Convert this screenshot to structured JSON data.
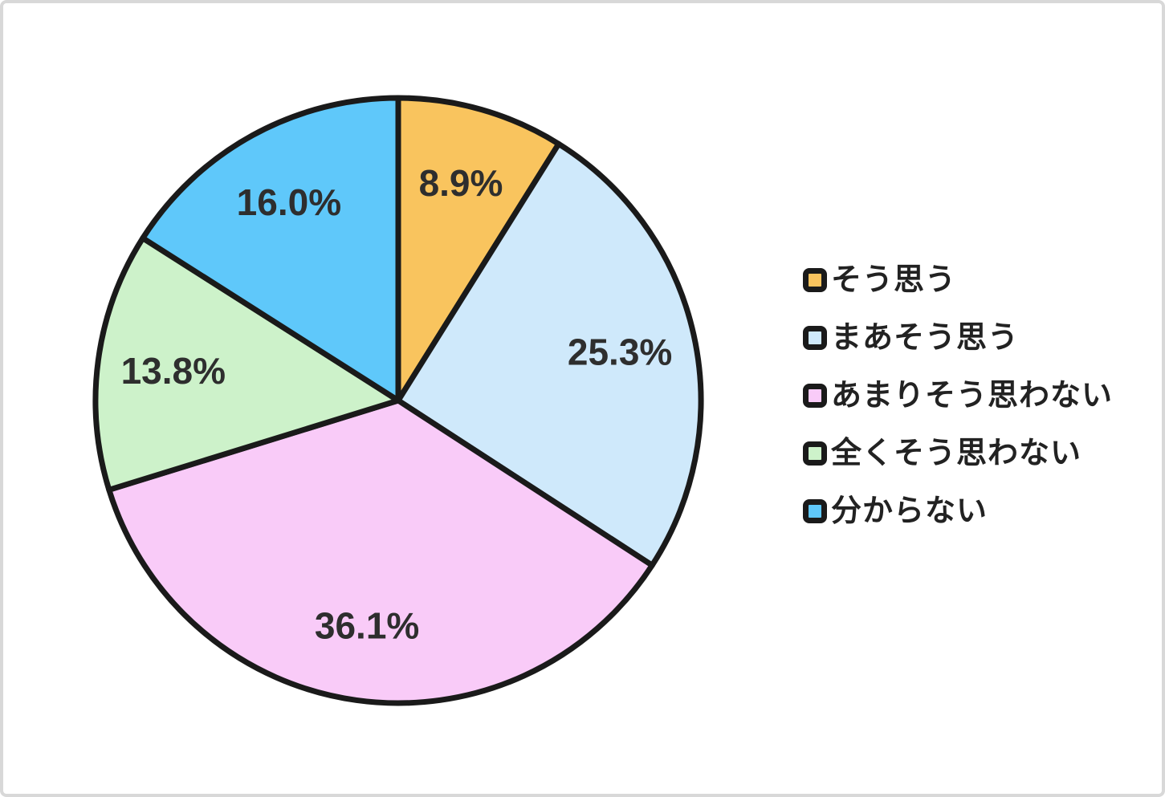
{
  "chart_data": {
    "type": "pie",
    "title": "",
    "direction": "clockwise",
    "start_angle_deg": 0,
    "legend_position": "right",
    "stroke_color": "#1a1a1a",
    "label_color": "#2e2e2e",
    "slices": [
      {
        "label": "そう思う",
        "value": 8.9,
        "display": "8.9%",
        "color": "#F9C45E"
      },
      {
        "label": "まあそう思う",
        "value": 25.3,
        "display": "25.3%",
        "color": "#CFE9FB"
      },
      {
        "label": "あまりそう思わない",
        "value": 36.1,
        "display": "36.1%",
        "color": "#F9CBF8"
      },
      {
        "label": "全くそう思わない",
        "value": 13.8,
        "display": "13.8%",
        "color": "#CDF2CA"
      },
      {
        "label": "分からない",
        "value": 16.0,
        "display": "16.0%",
        "color": "#5FC8FA"
      }
    ]
  }
}
